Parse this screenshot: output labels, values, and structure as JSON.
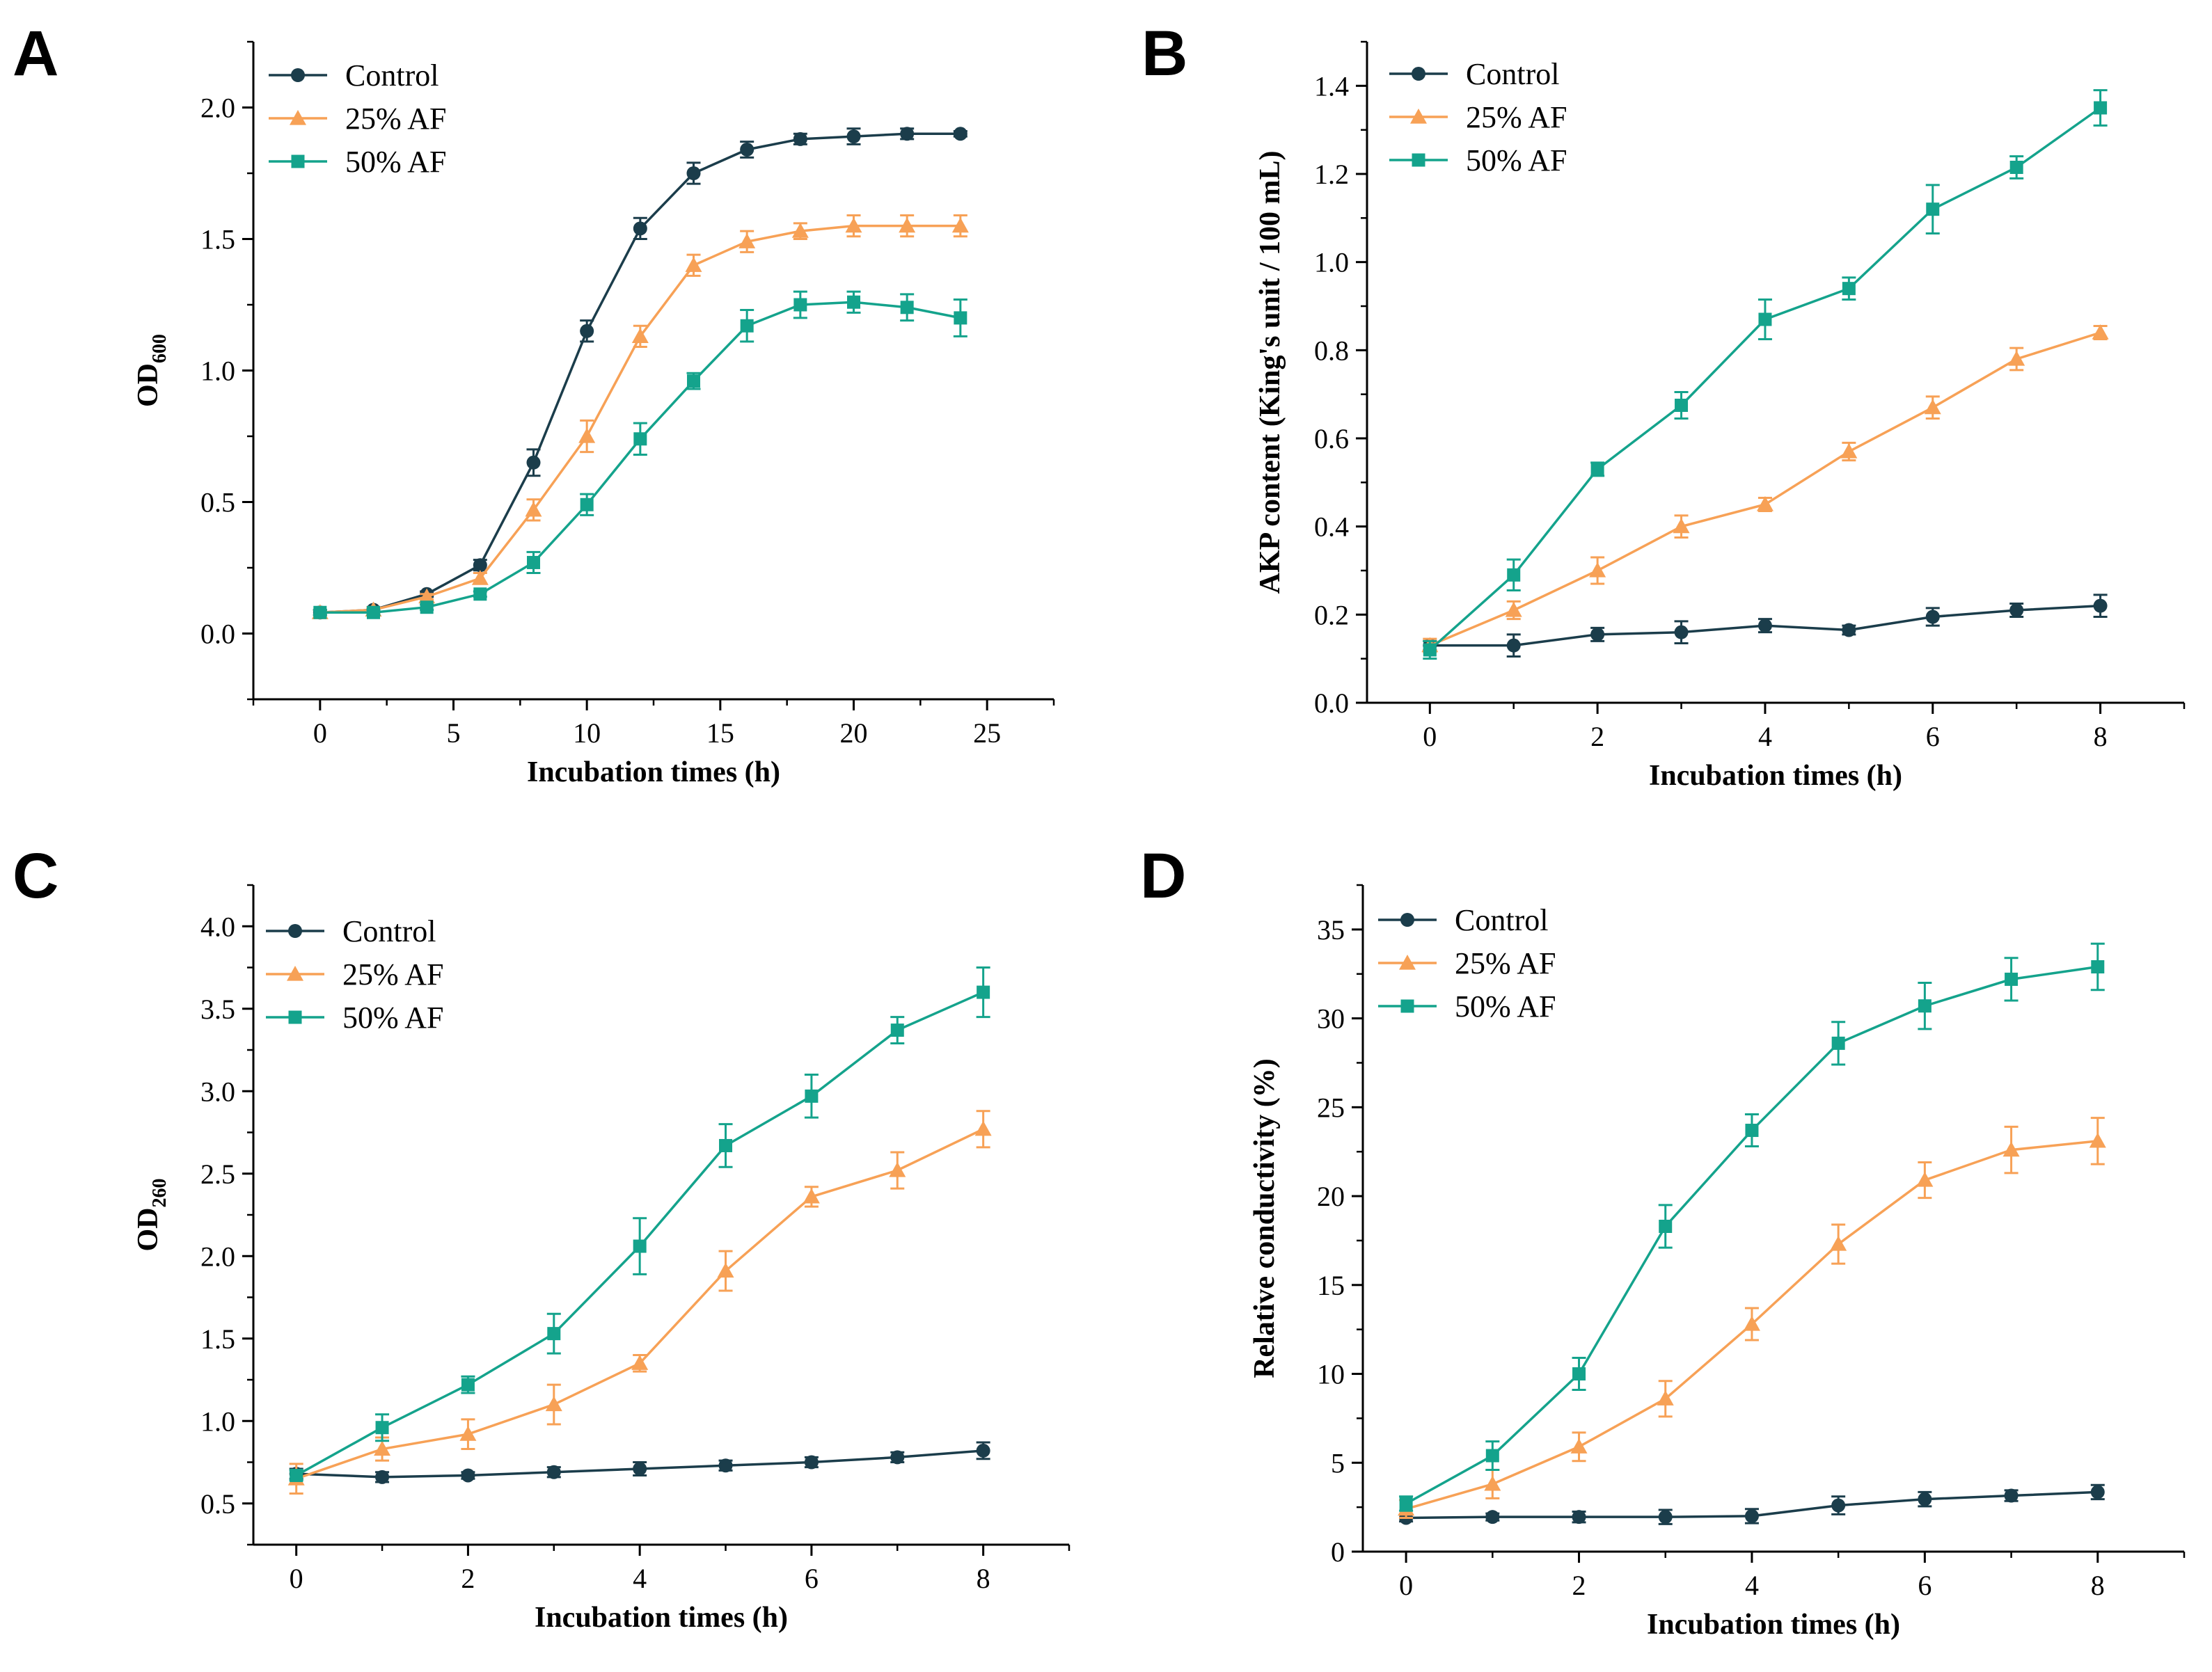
{
  "figure": {
    "series_names": [
      "Control",
      "25% AF",
      "50% AF"
    ],
    "colors": {
      "Control": "#1b3d4b",
      "25% AF": "#f7a156",
      "50% AF": "#14a38c",
      "axis": "#000000"
    }
  },
  "chart_data": [
    {
      "panel": "A",
      "type": "line",
      "title": "",
      "xlabel": "Incubation times (h)",
      "ylabel": "OD",
      "ylabel_sub": "600",
      "xlim": [
        -2.5,
        27.5
      ],
      "ylim": [
        -0.25,
        2.25
      ],
      "xticks": [
        0,
        5,
        10,
        15,
        20,
        25
      ],
      "yticks": [
        0.0,
        0.5,
        1.0,
        1.5,
        2.0
      ],
      "ytick_labels": [
        "0.0",
        "0.5",
        "1.0",
        "1.5",
        "2.0"
      ],
      "legend": "top-left",
      "grid": false,
      "x": [
        0,
        2,
        4,
        6,
        8,
        10,
        12,
        14,
        16,
        18,
        20,
        22,
        24
      ],
      "series": [
        {
          "name": "Control",
          "marker": "circle",
          "values": [
            0.08,
            0.09,
            0.15,
            0.26,
            0.65,
            1.15,
            1.54,
            1.75,
            1.84,
            1.88,
            1.89,
            1.9,
            1.9
          ],
          "errors": [
            0.01,
            0.01,
            0.01,
            0.02,
            0.05,
            0.04,
            0.04,
            0.04,
            0.03,
            0.02,
            0.03,
            0.02,
            0.01
          ]
        },
        {
          "name": "25% AF",
          "marker": "triangle",
          "values": [
            0.08,
            0.09,
            0.14,
            0.21,
            0.47,
            0.75,
            1.13,
            1.4,
            1.49,
            1.53,
            1.55,
            1.55,
            1.55
          ],
          "errors": [
            0.01,
            0.01,
            0.01,
            0.02,
            0.04,
            0.06,
            0.04,
            0.04,
            0.04,
            0.03,
            0.04,
            0.04,
            0.04
          ]
        },
        {
          "name": "50% AF",
          "marker": "square",
          "values": [
            0.08,
            0.08,
            0.1,
            0.15,
            0.27,
            0.49,
            0.74,
            0.96,
            1.17,
            1.25,
            1.26,
            1.24,
            1.2
          ],
          "errors": [
            0.01,
            0.01,
            0.01,
            0.01,
            0.04,
            0.04,
            0.06,
            0.03,
            0.06,
            0.05,
            0.04,
            0.05,
            0.07
          ]
        }
      ]
    },
    {
      "panel": "B",
      "type": "line",
      "title": "",
      "xlabel": "Incubation times (h)",
      "ylabel": "AKP content (King's unit / 100 mL)",
      "ylabel_sub": "",
      "xlim": [
        -0.75,
        9
      ],
      "ylim": [
        0,
        1.5
      ],
      "xticks": [
        0,
        2,
        4,
        6,
        8
      ],
      "yticks": [
        0.0,
        0.2,
        0.4,
        0.6,
        0.8,
        1.0,
        1.2,
        1.4
      ],
      "ytick_labels": [
        "0.0",
        "0.2",
        "0.4",
        "0.6",
        "0.8",
        "1.0",
        "1.2",
        "1.4"
      ],
      "legend": "top-left",
      "grid": false,
      "x": [
        0,
        1,
        2,
        3,
        4,
        5,
        6,
        7,
        8
      ],
      "series": [
        {
          "name": "Control",
          "marker": "circle",
          "values": [
            0.13,
            0.13,
            0.155,
            0.16,
            0.175,
            0.165,
            0.195,
            0.21,
            0.22
          ],
          "errors": [
            0.01,
            0.025,
            0.015,
            0.025,
            0.015,
            0.01,
            0.02,
            0.015,
            0.025
          ]
        },
        {
          "name": "25% AF",
          "marker": "triangle",
          "values": [
            0.13,
            0.21,
            0.3,
            0.4,
            0.45,
            0.57,
            0.67,
            0.78,
            0.84
          ],
          "errors": [
            0.015,
            0.02,
            0.03,
            0.025,
            0.015,
            0.02,
            0.025,
            0.025,
            0.015
          ]
        },
        {
          "name": "50% AF",
          "marker": "square",
          "values": [
            0.12,
            0.29,
            0.53,
            0.675,
            0.87,
            0.94,
            1.12,
            1.215,
            1.35
          ],
          "errors": [
            0.02,
            0.035,
            0.015,
            0.03,
            0.045,
            0.025,
            0.055,
            0.025,
            0.04
          ]
        }
      ]
    },
    {
      "panel": "C",
      "type": "line",
      "title": "",
      "xlabel": "Incubation times (h)",
      "ylabel": "OD",
      "ylabel_sub": "260",
      "xlim": [
        -0.5,
        9.0
      ],
      "ylim": [
        0.25,
        4.25
      ],
      "xticks": [
        0,
        2,
        4,
        6,
        8
      ],
      "yticks": [
        0.5,
        1.0,
        1.5,
        2.0,
        2.5,
        3.0,
        3.5,
        4.0
      ],
      "ytick_labels": [
        "0.5",
        "1.0",
        "1.5",
        "2.0",
        "2.5",
        "3.0",
        "3.5",
        "4.0"
      ],
      "legend": "top-left",
      "grid": false,
      "x": [
        0,
        1,
        2,
        3,
        4,
        5,
        6,
        7,
        8
      ],
      "series": [
        {
          "name": "Control",
          "marker": "circle",
          "values": [
            0.68,
            0.66,
            0.67,
            0.69,
            0.71,
            0.73,
            0.75,
            0.78,
            0.82
          ],
          "errors": [
            0.03,
            0.03,
            0.02,
            0.03,
            0.04,
            0.03,
            0.03,
            0.03,
            0.05
          ]
        },
        {
          "name": "25% AF",
          "marker": "triangle",
          "values": [
            0.65,
            0.83,
            0.92,
            1.1,
            1.35,
            1.91,
            2.36,
            2.52,
            2.77
          ],
          "errors": [
            0.09,
            0.07,
            0.09,
            0.12,
            0.05,
            0.12,
            0.06,
            0.11,
            0.11
          ]
        },
        {
          "name": "50% AF",
          "marker": "square",
          "values": [
            0.67,
            0.96,
            1.22,
            1.53,
            2.06,
            2.67,
            2.97,
            3.37,
            3.6
          ],
          "errors": [
            0.03,
            0.08,
            0.05,
            0.12,
            0.17,
            0.13,
            0.13,
            0.08,
            0.15
          ]
        }
      ]
    },
    {
      "panel": "D",
      "type": "line",
      "title": "",
      "xlabel": "Incubation times (h)",
      "ylabel": "Relative conductivity (%)",
      "ylabel_sub": "",
      "xlim": [
        -0.5,
        9.0
      ],
      "ylim": [
        0,
        37.5
      ],
      "xticks": [
        0,
        2,
        4,
        6,
        8
      ],
      "yticks": [
        0,
        5,
        10,
        15,
        20,
        25,
        30,
        35
      ],
      "ytick_labels": [
        "0",
        "5",
        "10",
        "15",
        "20",
        "25",
        "30",
        "35"
      ],
      "legend": "top-left",
      "grid": false,
      "x": [
        0,
        1,
        2,
        3,
        4,
        5,
        6,
        7,
        8
      ],
      "series": [
        {
          "name": "Control",
          "marker": "circle",
          "values": [
            1.9,
            1.95,
            1.95,
            1.95,
            2.0,
            2.6,
            2.95,
            3.15,
            3.35
          ],
          "errors": [
            0.2,
            0.2,
            0.3,
            0.4,
            0.4,
            0.5,
            0.4,
            0.3,
            0.4
          ]
        },
        {
          "name": "25% AF",
          "marker": "triangle",
          "values": [
            2.4,
            3.8,
            5.9,
            8.6,
            12.8,
            17.3,
            20.9,
            22.6,
            23.1
          ],
          "errors": [
            0.5,
            0.8,
            0.8,
            1.0,
            0.9,
            1.1,
            1.0,
            1.3,
            1.3
          ]
        },
        {
          "name": "50% AF",
          "marker": "square",
          "values": [
            2.7,
            5.4,
            10.0,
            18.3,
            23.7,
            28.6,
            30.7,
            32.2,
            32.9
          ],
          "errors": [
            0.4,
            0.8,
            0.9,
            1.2,
            0.9,
            1.2,
            1.3,
            1.2,
            1.3
          ]
        }
      ]
    }
  ]
}
